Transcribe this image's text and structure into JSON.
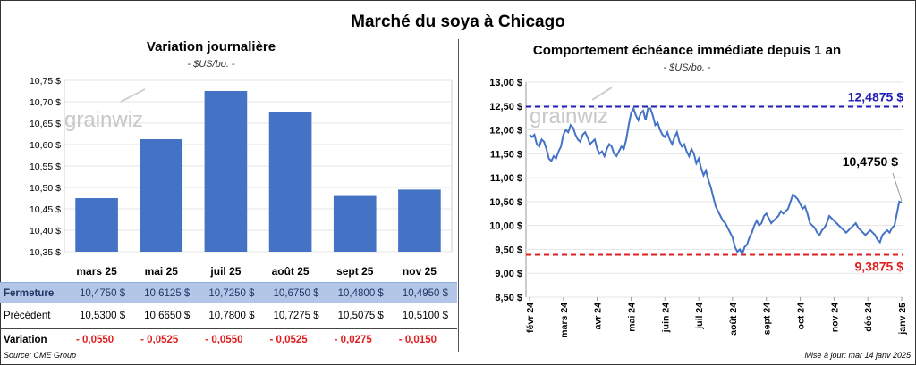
{
  "title": "Marché du soya à Chicago",
  "left": {
    "subtitle": "Variation journalière",
    "unit": "- $US/bo. -",
    "watermark": "grainwiz"
  },
  "right": {
    "subtitle": "Comportement échéance immédiate depuis 1 an",
    "unit": "- $US/bo. -",
    "watermark": "grainwiz",
    "high_label": "12,4875 $",
    "low_label": "9,3875 $",
    "last_label": "10,4750 $"
  },
  "table": {
    "rows": [
      {
        "label": "Fermeture",
        "values": [
          "10,4750 $",
          "10,6125 $",
          "10,7250 $",
          "10,6750 $",
          "10,4800 $",
          "10,4950 $"
        ]
      },
      {
        "label": "Précédent",
        "values": [
          "10,5300 $",
          "10,6650 $",
          "10,7800 $",
          "10,7275 $",
          "10,5075 $",
          "10,5100 $"
        ]
      },
      {
        "label": "Variation",
        "values": [
          "- 0,0550",
          "- 0,0525",
          "- 0,0550",
          "- 0,0525",
          "- 0,0275",
          "- 0,0150"
        ]
      }
    ]
  },
  "footer": {
    "source": "Source: CME Group",
    "update": "Mise à jour: mar 14 janv 2025"
  },
  "chart_data": [
    {
      "type": "bar",
      "title": "Variation journalière",
      "categories": [
        "mars 25",
        "mai 25",
        "juil 25",
        "août 25",
        "sept 25",
        "nov 25"
      ],
      "values": [
        10.475,
        10.6125,
        10.725,
        10.675,
        10.48,
        10.495
      ],
      "ylim": [
        10.35,
        10.75
      ],
      "yticks": [
        "10,35 $",
        "10,40 $",
        "10,45 $",
        "10,50 $",
        "10,55 $",
        "10,60 $",
        "10,65 $",
        "10,70 $",
        "10,75 $"
      ],
      "color": "#4472C4"
    },
    {
      "type": "line",
      "title": "Comportement échéance immédiate depuis 1 an",
      "ylim": [
        8.5,
        13.0
      ],
      "yticks": [
        "8,50 $",
        "9,00 $",
        "9,50 $",
        "10,00 $",
        "10,50 $",
        "11,00 $",
        "11,50 $",
        "12,00 $",
        "12,50 $",
        "13,00 $"
      ],
      "xticks": [
        "févr 24",
        "mars 24",
        "avr 24",
        "mai 24",
        "juin 24",
        "juil 24",
        "août 24",
        "sept 24",
        "oct 24",
        "nov 24",
        "déc 24",
        "janv 25"
      ],
      "high": 12.4875,
      "low": 9.3875,
      "last": 10.475,
      "colors": {
        "line": "#4472C4",
        "high": "#1F1FB4",
        "low": "#E02020"
      },
      "series": [
        {
          "values": [
            11.9,
            11.85,
            11.9,
            11.7,
            11.65,
            11.8,
            11.75,
            11.6,
            11.4,
            11.35,
            11.45,
            11.4,
            11.55,
            11.65,
            11.9,
            12.0,
            11.95,
            12.1,
            12.05,
            11.9,
            11.8,
            11.75,
            11.9,
            11.95,
            11.85,
            11.7,
            11.75,
            11.8,
            11.6,
            11.5,
            11.55,
            11.45,
            11.6,
            11.7,
            11.65,
            11.5,
            11.45,
            11.55,
            11.65,
            11.6,
            11.8,
            12.1,
            12.35,
            12.45,
            12.3,
            12.2,
            12.35,
            12.4,
            12.2,
            12.45,
            12.45,
            12.3,
            12.1,
            12.15,
            12.0,
            11.9,
            11.85,
            11.95,
            11.8,
            11.7,
            11.85,
            11.95,
            11.75,
            11.65,
            11.7,
            11.55,
            11.45,
            11.6,
            11.5,
            11.3,
            11.4,
            11.2,
            11.05,
            11.15,
            10.95,
            10.8,
            10.6,
            10.4,
            10.3,
            10.2,
            10.1,
            10.05,
            9.95,
            9.85,
            9.75,
            9.55,
            9.45,
            9.5,
            9.4,
            9.55,
            9.6,
            9.75,
            9.85,
            10.0,
            10.1,
            10.0,
            10.05,
            10.2,
            10.25,
            10.15,
            10.05,
            10.1,
            10.15,
            10.2,
            10.3,
            10.25,
            10.3,
            10.35,
            10.5,
            10.65,
            10.6,
            10.55,
            10.45,
            10.35,
            10.4,
            10.25,
            10.05,
            10.0,
            9.95,
            9.85,
            9.8,
            9.9,
            9.95,
            10.05,
            10.2,
            10.15,
            10.1,
            10.05,
            10.0,
            9.95,
            9.9,
            9.85,
            9.9,
            9.95,
            10.0,
            10.05,
            9.95,
            9.9,
            9.85,
            9.8,
            9.85,
            9.9,
            9.85,
            9.8,
            9.7,
            9.65,
            9.8,
            9.85,
            9.9,
            9.85,
            9.95,
            10.0,
            10.25,
            10.5,
            10.475
          ]
        }
      ]
    }
  ]
}
